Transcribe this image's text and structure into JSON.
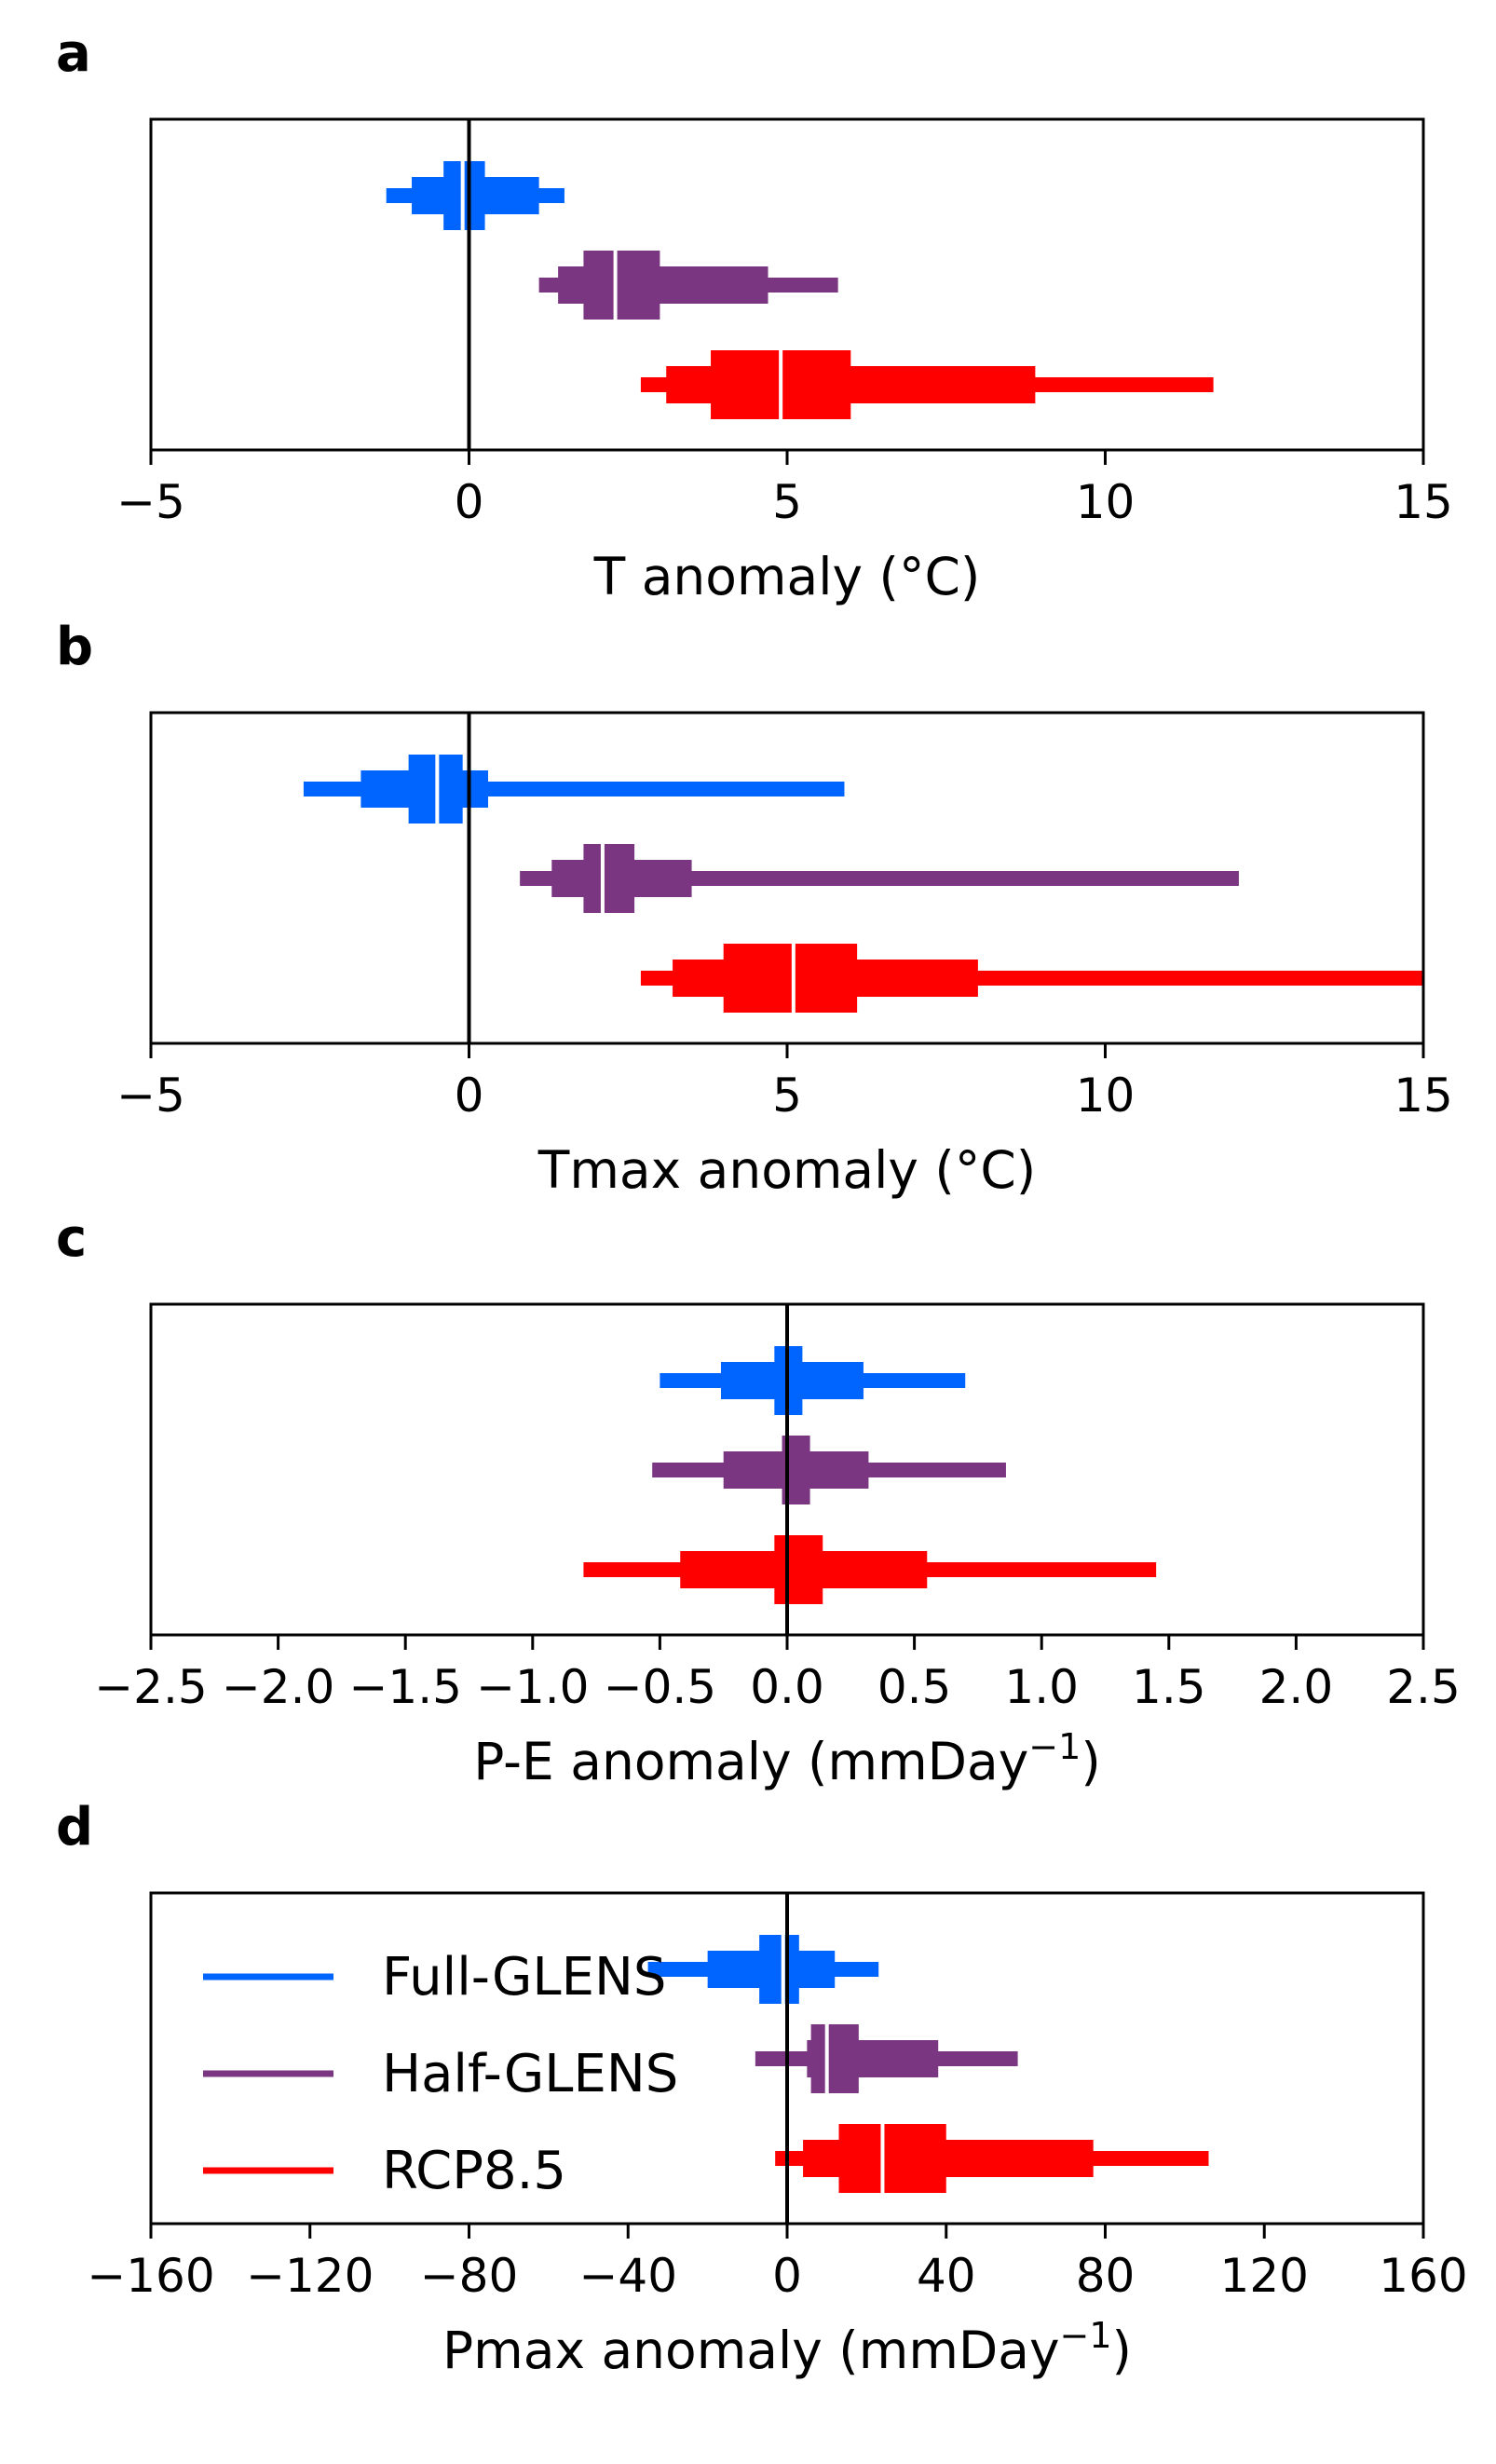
{
  "colors": {
    "Full-GLENS": "#0064ff",
    "Half-GLENS": "#7b3682",
    "RCP8.5": "#ff0000",
    "median": "#ffffff",
    "axis": "#000000"
  },
  "legend": {
    "placement": "top-left of panel d",
    "entries": [
      "Full-GLENS",
      "Half-GLENS",
      "RCP8.5"
    ]
  },
  "chart_data": [
    {
      "type": "boxen",
      "letter": "a",
      "xlabel": "T anomaly (",
      "xlabel_unit": "°C)",
      "xlim": [
        -5,
        15
      ],
      "xticks": [
        -5,
        0,
        5,
        10,
        15
      ],
      "xtick_labels": [
        "−5",
        "0",
        "5",
        "10",
        "15"
      ],
      "zero_line": 0,
      "series": [
        {
          "name": "Full-GLENS",
          "median": -0.1,
          "levels": [
            [
              -1.3,
              1.5
            ],
            [
              -0.9,
              1.1
            ],
            [
              -0.4,
              0.25
            ]
          ]
        },
        {
          "name": "Half-GLENS",
          "median": 2.3,
          "levels": [
            [
              1.1,
              5.8
            ],
            [
              1.4,
              4.7
            ],
            [
              1.8,
              3.0
            ]
          ]
        },
        {
          "name": "RCP8.5",
          "median": 4.9,
          "levels": [
            [
              2.7,
              11.7
            ],
            [
              3.1,
              8.9
            ],
            [
              3.8,
              6.0
            ]
          ]
        }
      ]
    },
    {
      "type": "boxen",
      "letter": "b",
      "xlabel": "Tmax anomaly (",
      "xlabel_unit": "°C)",
      "xlim": [
        -5,
        15
      ],
      "xticks": [
        -5,
        0,
        5,
        10,
        15
      ],
      "xtick_labels": [
        "−5",
        "0",
        "5",
        "10",
        "15"
      ],
      "zero_line": 0,
      "series": [
        {
          "name": "Full-GLENS",
          "median": -0.5,
          "levels": [
            [
              -2.6,
              5.9
            ],
            [
              -1.7,
              0.3
            ],
            [
              -0.95,
              -0.1
            ]
          ]
        },
        {
          "name": "Half-GLENS",
          "median": 2.1,
          "levels": [
            [
              0.8,
              12.1
            ],
            [
              1.3,
              3.5
            ],
            [
              1.8,
              2.6
            ]
          ]
        },
        {
          "name": "RCP8.5",
          "median": 5.1,
          "levels": [
            [
              2.7,
              15.0
            ],
            [
              3.2,
              8.0
            ],
            [
              4.0,
              6.1
            ]
          ]
        }
      ]
    },
    {
      "type": "boxen",
      "letter": "c",
      "xlabel": "P-E anomaly (mmDay",
      "xlabel_sup": "−1",
      "xlabel_close": ")",
      "xlim": [
        -2.5,
        2.5
      ],
      "xticks": [
        -2.5,
        -2.0,
        -1.5,
        -1.0,
        -0.5,
        0.0,
        0.5,
        1.0,
        1.5,
        2.0,
        2.5
      ],
      "xtick_labels": [
        "−2.5",
        "−2.0",
        "−1.5",
        "−1.0",
        "−0.5",
        "0.0",
        "0.5",
        "1.0",
        "1.5",
        "2.0",
        "2.5"
      ],
      "zero_line": 0,
      "series": [
        {
          "name": "Full-GLENS",
          "median": 0.0,
          "levels": [
            [
              -0.5,
              0.7
            ],
            [
              -0.26,
              0.3
            ],
            [
              -0.05,
              0.06
            ]
          ]
        },
        {
          "name": "Half-GLENS",
          "median": 0.0,
          "levels": [
            [
              -0.53,
              0.86
            ],
            [
              -0.25,
              0.32
            ],
            [
              -0.02,
              0.09
            ]
          ]
        },
        {
          "name": "RCP8.5",
          "median": 0.0,
          "levels": [
            [
              -0.8,
              1.45
            ],
            [
              -0.42,
              0.55
            ],
            [
              -0.05,
              0.14
            ]
          ]
        }
      ]
    },
    {
      "type": "boxen",
      "letter": "d",
      "xlabel": "Pmax anomaly (mmDay",
      "xlabel_sup": "−1",
      "xlabel_close": ")",
      "xlim": [
        -160,
        160
      ],
      "xticks": [
        -160,
        -120,
        -80,
        -40,
        0,
        40,
        80,
        120,
        160
      ],
      "xtick_labels": [
        "−160",
        "−120",
        "−80",
        "−40",
        "0",
        "40",
        "80",
        "120",
        "160"
      ],
      "zero_line": 0,
      "legend": true,
      "series": [
        {
          "name": "Full-GLENS",
          "median": -1,
          "levels": [
            [
              -35,
              23
            ],
            [
              -20,
              12
            ],
            [
              -7,
              3
            ]
          ]
        },
        {
          "name": "Half-GLENS",
          "median": 10,
          "levels": [
            [
              -8,
              58
            ],
            [
              5,
              38
            ],
            [
              6,
              18
            ]
          ]
        },
        {
          "name": "RCP8.5",
          "median": 24,
          "levels": [
            [
              -3,
              106
            ],
            [
              4,
              77
            ],
            [
              13,
              40
            ]
          ]
        }
      ]
    }
  ]
}
